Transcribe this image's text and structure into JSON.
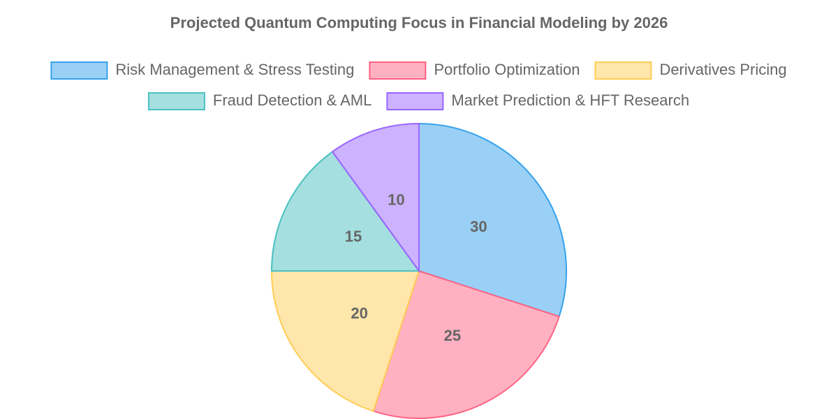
{
  "chart_data": {
    "type": "pie",
    "title": "Projected Quantum Computing Focus in Financial Modeling by 2026",
    "categories": [
      "Risk Management & Stress Testing",
      "Portfolio Optimization",
      "Derivatives Pricing",
      "Fraud Detection & AML",
      "Market Prediction & HFT Research"
    ],
    "values": [
      30,
      25,
      20,
      15,
      10
    ],
    "colors": [
      "#36a2eb",
      "#ff6384",
      "#ffcd56",
      "#4bc0c0",
      "#9966ff"
    ],
    "legend": "top"
  }
}
